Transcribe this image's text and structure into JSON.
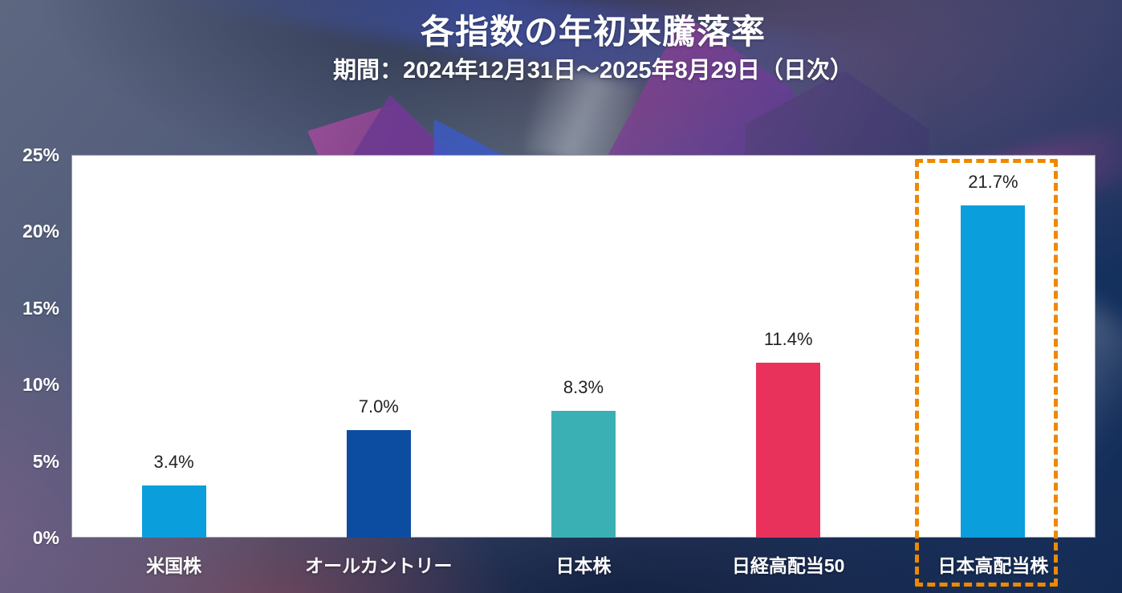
{
  "header": {
    "title": "各指数の年初来騰落率",
    "subtitle": "期間：2024年12月31日～2025年8月29日（日次）"
  },
  "chart_data": {
    "type": "bar",
    "title": "各指数の年初来騰落率",
    "subtitle": "期間：2024年12月31日～2025年8月29日（日次）",
    "categories": [
      "米国株",
      "オールカントリー",
      "日本株",
      "日経高配当50",
      "日本高配当株"
    ],
    "values": [
      3.4,
      7.0,
      8.3,
      11.4,
      21.7
    ],
    "value_labels": [
      "3.4%",
      "7.0%",
      "8.3%",
      "11.4%",
      "21.7%"
    ],
    "bar_colors": [
      "#0A9EDC",
      "#0C4DA2",
      "#3AB0B4",
      "#E8325C",
      "#0A9EDC"
    ],
    "y_ticks": [
      "0%",
      "5%",
      "10%",
      "15%",
      "20%",
      "25%"
    ],
    "ylim": [
      0,
      25
    ],
    "grid": false,
    "legend": "none",
    "plot_background": "#FFFFFF",
    "value_label_color": "#222222",
    "axis_text_color": "#FFFFFF",
    "highlight": {
      "category": "日本高配当株",
      "style": "dashed-outline",
      "color": "#EE8800"
    }
  }
}
